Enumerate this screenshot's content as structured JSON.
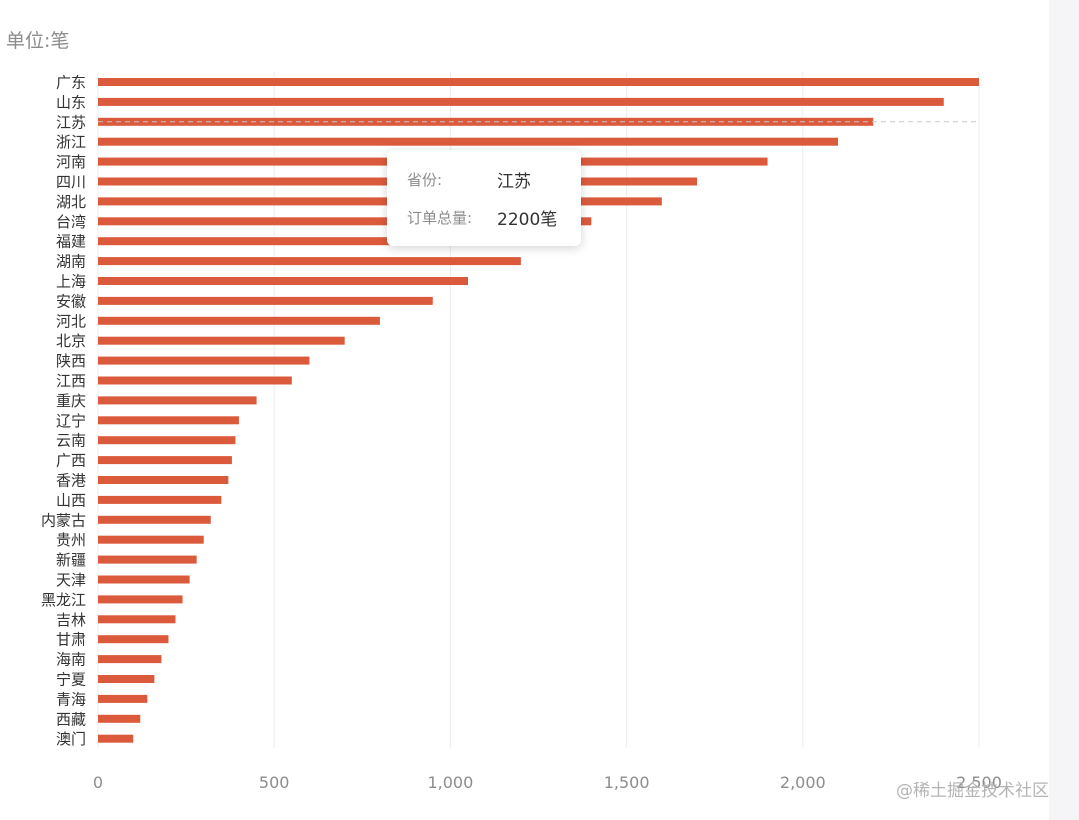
{
  "unit_label": "单位:笔",
  "tooltip": {
    "province_key": "省份:",
    "province_value": "江苏",
    "total_key": "订单总量:",
    "total_value": "2200笔"
  },
  "watermark": "@稀土掘金技术社区",
  "colors": {
    "bar": "#dc5a3c",
    "grid": "#ececec",
    "axis_label": "#8c8c8c",
    "category_label": "#333333",
    "pointer_line": "#c8c8c8"
  },
  "chart_data": {
    "type": "bar",
    "orientation": "horizontal",
    "categories": [
      "广东",
      "山东",
      "江苏",
      "浙江",
      "河南",
      "四川",
      "湖北",
      "台湾",
      "福建",
      "湖南",
      "上海",
      "安徽",
      "河北",
      "北京",
      "陕西",
      "江西",
      "重庆",
      "辽宁",
      "云南",
      "广西",
      "香港",
      "山西",
      "内蒙古",
      "贵州",
      "新疆",
      "天津",
      "黑龙江",
      "吉林",
      "甘肃",
      "海南",
      "宁夏",
      "青海",
      "西藏",
      "澳门"
    ],
    "values": [
      2500,
      2400,
      2200,
      2100,
      1900,
      1700,
      1600,
      1400,
      1300,
      1200,
      1050,
      950,
      800,
      700,
      600,
      550,
      450,
      400,
      390,
      380,
      370,
      350,
      320,
      300,
      280,
      260,
      240,
      220,
      200,
      180,
      160,
      140,
      120,
      100
    ],
    "x_ticks": [
      "0",
      "500",
      "1,000",
      "1,500",
      "2,000",
      "2,500"
    ],
    "x_tick_values": [
      0,
      500,
      1000,
      1500,
      2000,
      2500
    ],
    "xlim": [
      0,
      2500
    ],
    "grid": true,
    "highlighted_category": "江苏"
  }
}
